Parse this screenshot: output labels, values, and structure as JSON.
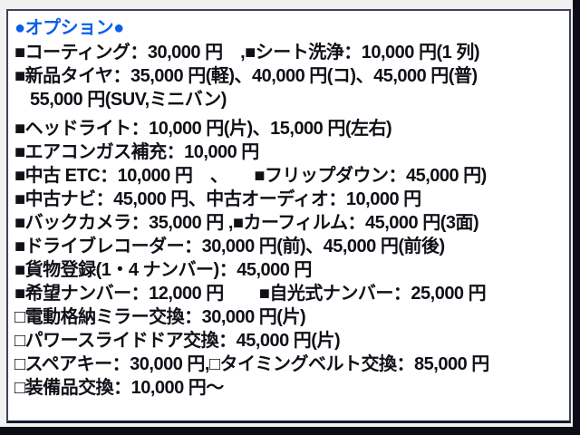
{
  "panel": {
    "title": "●オプション●",
    "title_color": "#0a5fe8",
    "text_color": "#101018",
    "lines": [
      {
        "text": "■コーティング：30,000 円　,■シート洗浄：10,000 円(1 列)"
      },
      {
        "text": "■新品タイヤ：35,000 円(軽)、40,000 円(コ)、45,000 円(普)"
      },
      {
        "text": "55,000 円(SUV,ミニバン)"
      },
      {
        "text": "■ヘッドライト：10,000 円(片)、15,000 円(左右)"
      },
      {
        "text": "■エアコンガス補充：10,000 円"
      },
      {
        "text": "■中古 ETC：10,000 円　、　　■フリップダウン：45,000 円)"
      },
      {
        "text": "■中古ナビ：45,000 円、中古オーディオ：10,000 円"
      },
      {
        "text": "■バックカメラ：35,000 円 ,■カーフィルム：45,000 円(3面)"
      },
      {
        "text": "■ドライブレコーダー：30,000 円(前)、45,000 円(前後)"
      },
      {
        "text": "■貨物登録(1・4 ナンバー)：45,000 円"
      },
      {
        "text": "■希望ナンバー：12,000 円　　■自光式ナンバー：25,000 円"
      },
      {
        "text": "□電動格納ミラー交換：30,000 円(片)"
      },
      {
        "text": "□パワースライドドア交換：45,000 円(片)"
      },
      {
        "text": "□スペアキー：30,000 円,□タイミングベルト交換：85,000 円"
      },
      {
        "text": "□装備品交換：10,000 円～"
      }
    ]
  }
}
